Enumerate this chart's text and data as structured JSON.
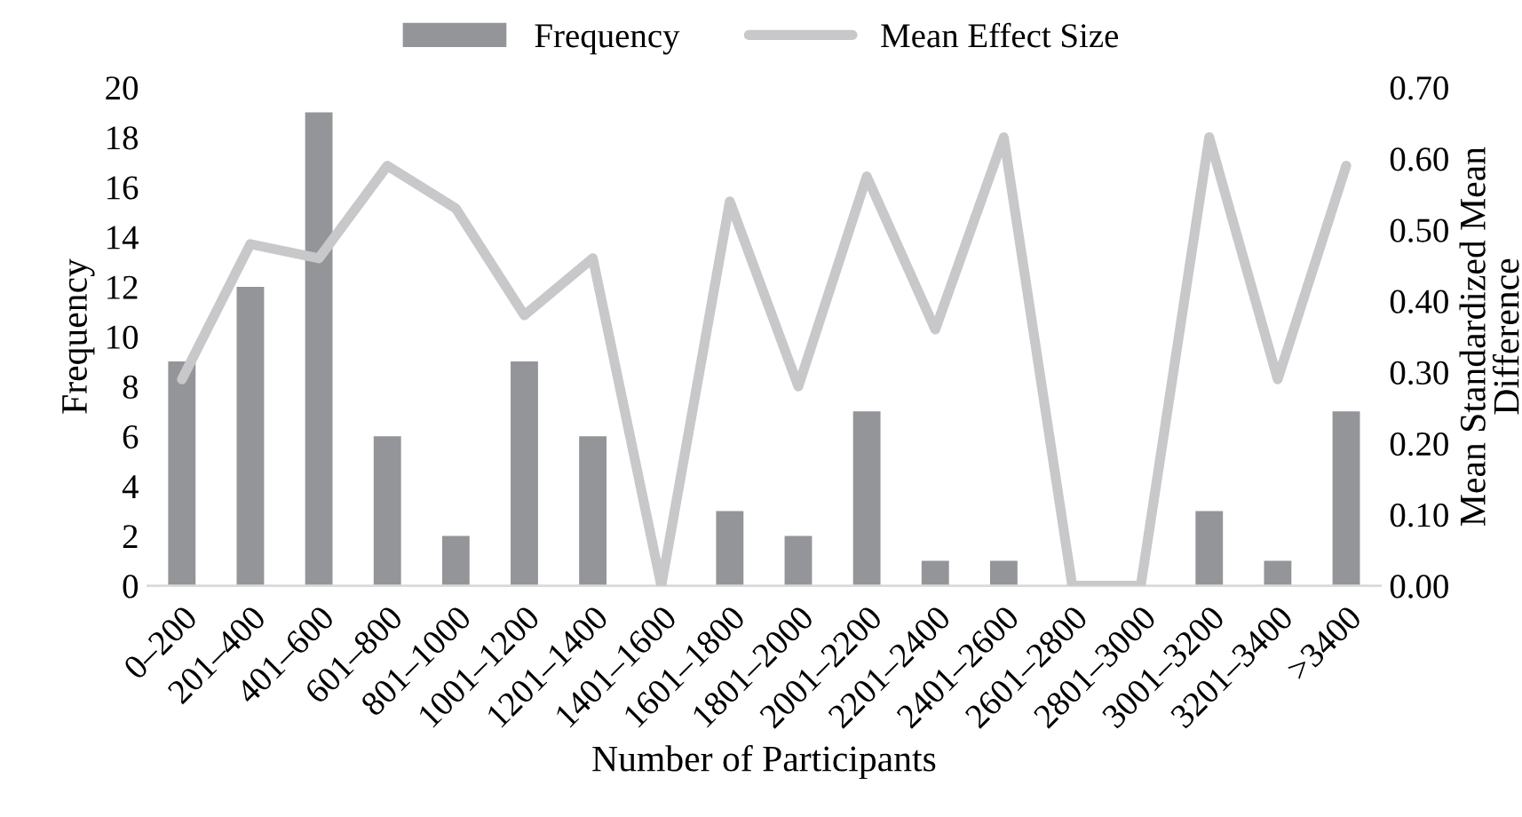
{
  "chart_data": {
    "type": "bar",
    "xlabel": "Number of Participants",
    "ylabel": "Frequency",
    "y2label": "Mean Standardized Mean\nDifference",
    "categories": [
      "0–200",
      "201–400",
      "401–600",
      "601–800",
      "801–1000",
      "1001–1200",
      "1201–1400",
      "1401–1600",
      "1601–1800",
      "1801–2000",
      "2001–2200",
      "2201–2400",
      "2401–2600",
      "2601–2800",
      "2801–3000",
      "3001–3200",
      "3201–3400",
      ">3400"
    ],
    "series": [
      {
        "name": "Frequency",
        "color": "#939598",
        "values": [
          9,
          12,
          19,
          6,
          2,
          9,
          6,
          0,
          3,
          2,
          7,
          1,
          1,
          0,
          0,
          3,
          1,
          7
        ]
      },
      {
        "name": "Mean Effect Size",
        "type": "line",
        "axis": "y2",
        "color": "#c8c8ca",
        "values": [
          0.29,
          0.48,
          0.46,
          0.59,
          0.53,
          0.38,
          0.46,
          0,
          0.54,
          0.28,
          0.575,
          0.36,
          0.63,
          0,
          0,
          0.63,
          0.29,
          0.59
        ]
      }
    ],
    "ylim": [
      0,
      20
    ],
    "yticks": [
      0,
      2,
      4,
      6,
      8,
      10,
      12,
      14,
      16,
      18,
      20
    ],
    "y2lim": [
      0,
      0.7
    ],
    "y2ticks": [
      {
        "value": 0,
        "label": "0.00"
      },
      {
        "value": 0.1,
        "label": "0.10"
      },
      {
        "value": 0.2,
        "label": "0.20"
      },
      {
        "value": 0.3,
        "label": "0.30"
      },
      {
        "value": 0.4,
        "label": "0.40"
      },
      {
        "value": 0.5,
        "label": "0.50"
      },
      {
        "value": 0.6,
        "label": "0.60"
      },
      {
        "value": 0.7,
        "label": "0.70"
      }
    ],
    "legend": "top",
    "grid": false,
    "marker": "none",
    "line_style": "solid"
  }
}
